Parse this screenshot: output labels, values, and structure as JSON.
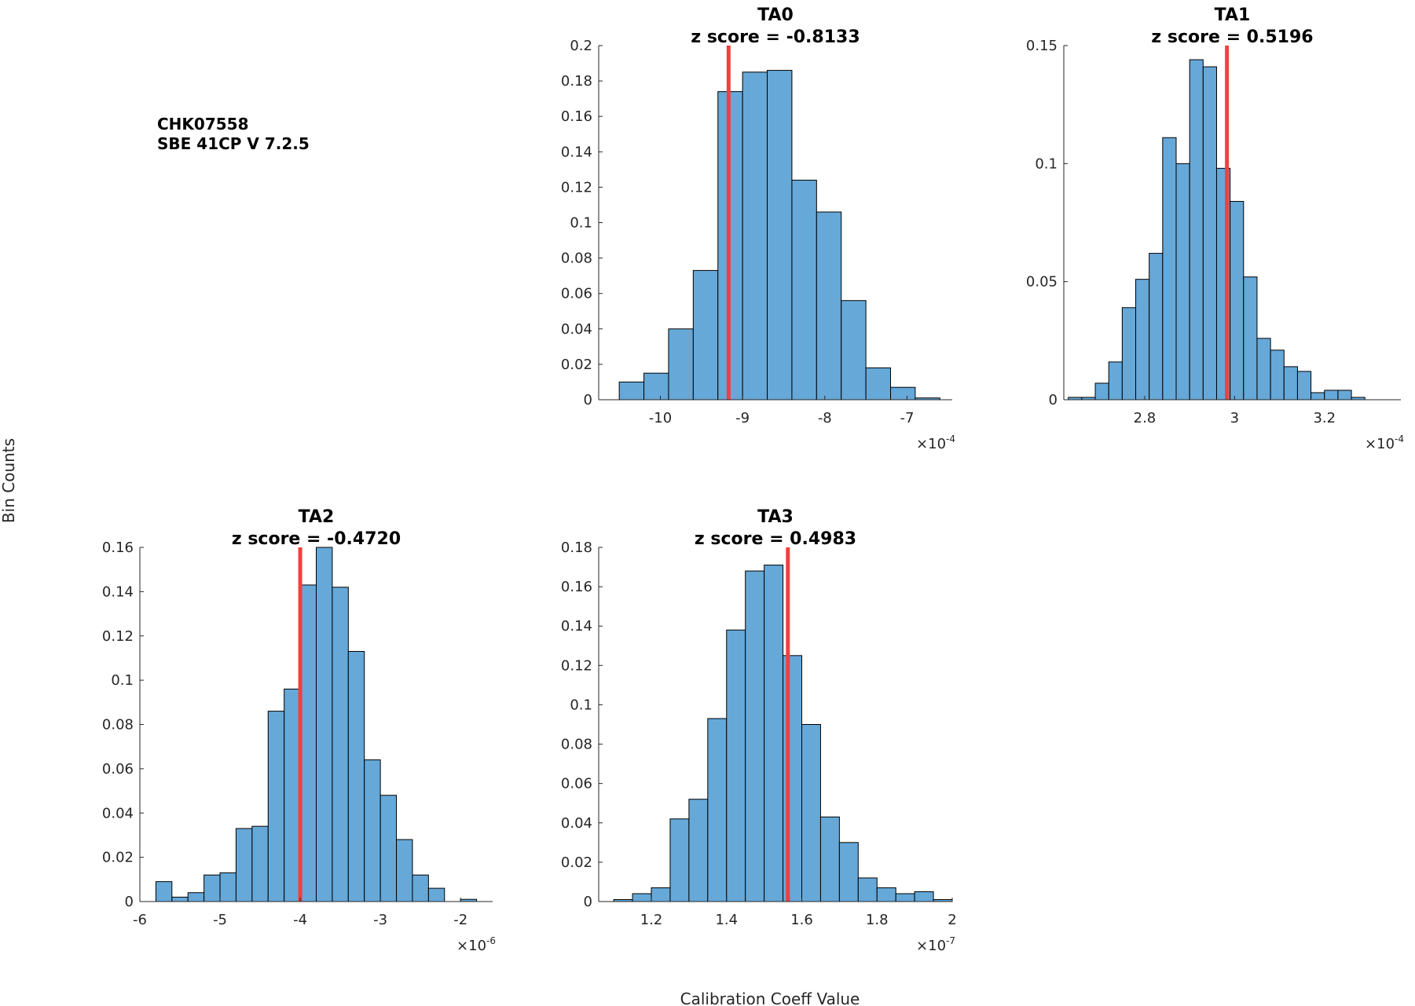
{
  "figure": {
    "annotation_lines": [
      "CHK07558",
      "SBE 41CP V 7.2.5"
    ],
    "ylabel": "Bin Counts",
    "xlabel": "Calibration Coeff Value"
  },
  "colors": {
    "bar_fill": "#66a8d8",
    "bar_edge": "#000000",
    "marker": "#f0403f",
    "axis": "#262626"
  },
  "chart_data": [
    {
      "type": "bar",
      "id": "ta0",
      "title": "TA0",
      "subtitle": "z score = -0.8133",
      "exponent_base": "×10",
      "exponent_power": "-4",
      "xlim": [
        -10.75,
        -6.45
      ],
      "ylim": [
        0,
        0.2
      ],
      "bin_edges": [
        -10.5,
        -10.2,
        -9.9,
        -9.6,
        -9.3,
        -9.0,
        -8.7,
        -8.4,
        -8.1,
        -7.8,
        -7.5,
        -7.2,
        -6.9,
        -6.6
      ],
      "values": [
        0.01,
        0.015,
        0.04,
        0.073,
        0.174,
        0.185,
        0.186,
        0.124,
        0.106,
        0.056,
        0.018,
        0.007,
        0.001
      ],
      "marker_x": -9.17,
      "xticks": [
        -10,
        -9,
        -8,
        -7
      ],
      "xtick_labels": [
        "-10",
        "-9",
        "-8",
        "-7"
      ],
      "yticks": [
        0,
        0.02,
        0.04,
        0.06,
        0.08,
        0.1,
        0.12,
        0.14,
        0.16,
        0.18,
        0.2
      ],
      "ytick_labels": [
        "0",
        "0.02",
        "0.04",
        "0.06",
        "0.08",
        "0.1",
        "0.12",
        "0.14",
        "0.16",
        "0.18",
        "0.2"
      ]
    },
    {
      "type": "bar",
      "id": "ta1",
      "title": "TA1",
      "subtitle": "z score = 0.5196",
      "exponent_base": "×10",
      "exponent_power": "-4",
      "xlim": [
        2.62,
        3.37
      ],
      "ylim": [
        0,
        0.15
      ],
      "bin_edges": [
        2.63,
        2.66,
        2.69,
        2.72,
        2.75,
        2.78,
        2.81,
        2.84,
        2.87,
        2.9,
        2.93,
        2.96,
        2.99,
        3.02,
        3.05,
        3.08,
        3.11,
        3.14,
        3.17,
        3.2,
        3.23,
        3.26,
        3.29,
        3.32,
        3.35
      ],
      "values": [
        0.001,
        0.001,
        0.007,
        0.016,
        0.039,
        0.051,
        0.062,
        0.111,
        0.1,
        0.144,
        0.141,
        0.098,
        0.084,
        0.052,
        0.026,
        0.021,
        0.014,
        0.012,
        0.003,
        0.004,
        0.004,
        0.001,
        0.0,
        0.0
      ],
      "marker_x": 2.983,
      "xticks": [
        2.8,
        3.0,
        3.2
      ],
      "xtick_labels": [
        "2.8",
        "3",
        "3.2"
      ],
      "yticks": [
        0,
        0.05,
        0.1,
        0.15
      ],
      "ytick_labels": [
        "0",
        "0.05",
        "0.1",
        "0.15"
      ]
    },
    {
      "type": "bar",
      "id": "ta2",
      "title": "TA2",
      "subtitle": "z score = -0.4720",
      "exponent_base": "×10",
      "exponent_power": "-6",
      "xlim": [
        -6.0,
        -1.6
      ],
      "ylim": [
        0,
        0.16
      ],
      "bin_edges": [
        -5.8,
        -5.6,
        -5.4,
        -5.2,
        -5.0,
        -4.8,
        -4.6,
        -4.4,
        -4.2,
        -4.0,
        -3.8,
        -3.6,
        -3.4,
        -3.2,
        -3.0,
        -2.8,
        -2.6,
        -2.4,
        -2.2,
        -2.0,
        -1.8
      ],
      "values": [
        0.009,
        0.002,
        0.004,
        0.012,
        0.013,
        0.033,
        0.034,
        0.086,
        0.096,
        0.143,
        0.16,
        0.142,
        0.113,
        0.064,
        0.048,
        0.028,
        0.012,
        0.006,
        0.0,
        0.001
      ],
      "marker_x": -4.0,
      "xticks": [
        -6,
        -5,
        -4,
        -3,
        -2
      ],
      "xtick_labels": [
        "-6",
        "-5",
        "-4",
        "-3",
        "-2"
      ],
      "yticks": [
        0,
        0.02,
        0.04,
        0.06,
        0.08,
        0.1,
        0.12,
        0.14,
        0.16
      ],
      "ytick_labels": [
        "0",
        "0.02",
        "0.04",
        "0.06",
        "0.08",
        "0.1",
        "0.12",
        "0.14",
        "0.16"
      ]
    },
    {
      "type": "bar",
      "id": "ta3",
      "title": "TA3",
      "subtitle": "z score = 0.4983",
      "exponent_base": "×10",
      "exponent_power": "-7",
      "xlim": [
        1.06,
        2.0
      ],
      "ylim": [
        0,
        0.18
      ],
      "bin_edges": [
        1.1,
        1.15,
        1.2,
        1.25,
        1.3,
        1.35,
        1.4,
        1.45,
        1.5,
        1.55,
        1.6,
        1.65,
        1.7,
        1.75,
        1.8,
        1.85,
        1.9,
        1.95,
        2.0
      ],
      "values": [
        0.001,
        0.004,
        0.007,
        0.042,
        0.052,
        0.093,
        0.138,
        0.168,
        0.171,
        0.125,
        0.09,
        0.043,
        0.03,
        0.012,
        0.007,
        0.004,
        0.005,
        0.001
      ],
      "marker_x": 1.563,
      "xticks": [
        1.2,
        1.4,
        1.6,
        1.8,
        2.0
      ],
      "xtick_labels": [
        "1.2",
        "1.4",
        "1.6",
        "1.8",
        "2"
      ],
      "yticks": [
        0,
        0.02,
        0.04,
        0.06,
        0.08,
        0.1,
        0.12,
        0.14,
        0.16,
        0.18
      ],
      "ytick_labels": [
        "0",
        "0.02",
        "0.04",
        "0.06",
        "0.08",
        "0.1",
        "0.12",
        "0.14",
        "0.16",
        "0.18"
      ]
    }
  ]
}
